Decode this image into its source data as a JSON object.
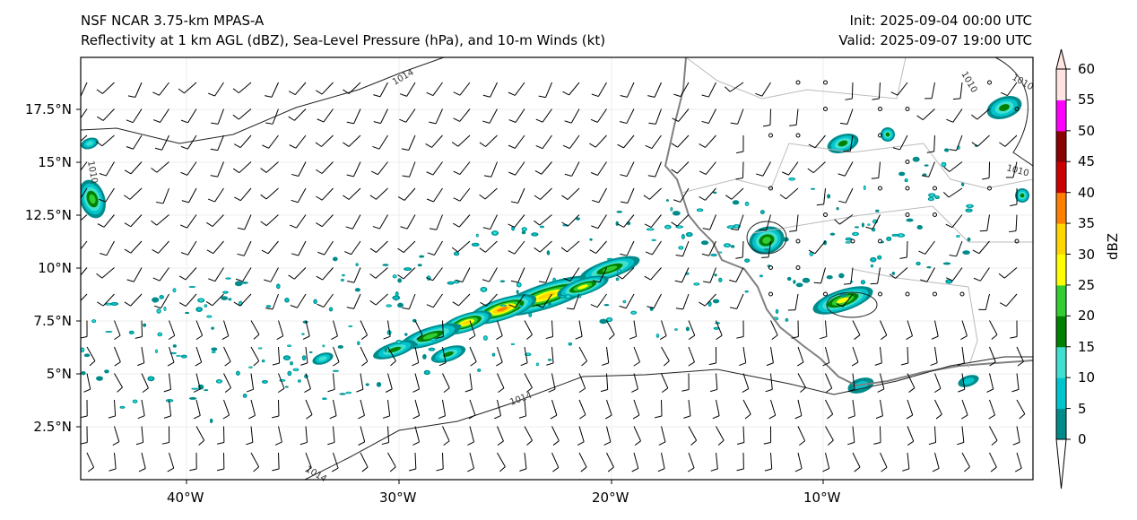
{
  "title": {
    "model": "NSF NCAR 3.75-km MPAS-A",
    "fields": "Reflectivity at 1 km AGL (dBZ), Sea-Level Pressure (hPa), and 10-m Winds (kt)",
    "init": "Init: 2025-09-04 00:00 UTC",
    "valid": "Valid: 2025-09-07 19:00 UTC"
  },
  "axes": {
    "lon_ticks": [
      "40°W",
      "30°W",
      "20°W",
      "10°W"
    ],
    "lat_ticks": [
      "17.5°N",
      "15°N",
      "12.5°N",
      "10°N",
      "7.5°N",
      "5°N",
      "2.5°N"
    ]
  },
  "contour_labels": [
    "1014",
    "1014",
    "1010",
    "1010",
    "1014",
    "1010",
    "1010"
  ],
  "colorbar": {
    "label": "dBZ",
    "ticks": [
      "60",
      "55",
      "50",
      "45",
      "40",
      "35",
      "30",
      "25",
      "20",
      "15",
      "10",
      "5",
      "0"
    ],
    "colors": [
      "#008b8b",
      "#00c5cd",
      "#40e0d0",
      "#008000",
      "#32cd32",
      "#ffff00",
      "#ffd700",
      "#ff7f00",
      "#cc0000",
      "#8b0000",
      "#ff00ff",
      "#ffe4e1"
    ]
  }
}
